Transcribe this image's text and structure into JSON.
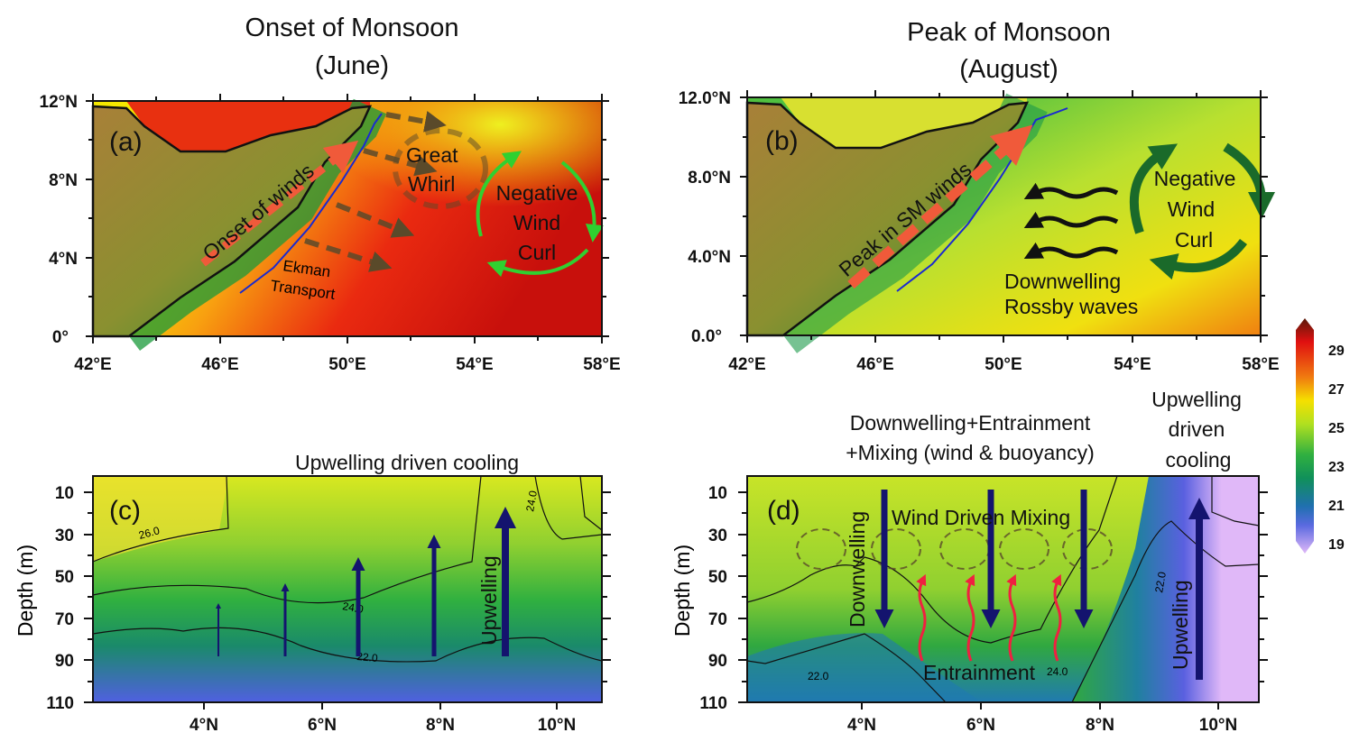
{
  "titles": {
    "left": {
      "line1": "Onset of Monsoon",
      "line2": "(June)"
    },
    "right": {
      "line1": "Peak of Monsoon",
      "line2": "(August)"
    }
  },
  "panel_a": {
    "label": "(a)",
    "x_ticks": [
      "42°E",
      "46°E",
      "50°E",
      "54°E",
      "58°E"
    ],
    "y_ticks": [
      "12°N",
      "8°N",
      "4°N",
      "0°"
    ],
    "annotations": {
      "winds": "Onset of winds",
      "great": "Great",
      "whirl": "Whirl",
      "negative": "Negative",
      "wind": "Wind",
      "curl": "Curl",
      "ekman": "Ekman",
      "transport": "Transport"
    }
  },
  "panel_b": {
    "label": "(b)",
    "x_ticks": [
      "42°E",
      "46°E",
      "50°E",
      "54°E",
      "58°E"
    ],
    "y_ticks": [
      "12.0°N",
      "8.0°N",
      "4.0°N",
      "0.0°"
    ],
    "annotations": {
      "winds": "Peak in SM winds",
      "negative": "Negative",
      "wind": "Wind",
      "curl": "Curl",
      "downwelling": "Downwelling",
      "rossby": "Rossby waves"
    }
  },
  "panel_c": {
    "label": "(c)",
    "title": "Upwelling driven cooling",
    "ylabel": "Depth (m)",
    "y_ticks": [
      "10",
      "30",
      "50",
      "70",
      "90",
      "110"
    ],
    "x_ticks": [
      "4°N",
      "6°N",
      "8°N",
      "10°N"
    ],
    "contours": [
      "26.0",
      "24.0",
      "22.0",
      "24.0"
    ],
    "annotations": {
      "upwelling": "Upwelling"
    }
  },
  "panel_d": {
    "label": "(d)",
    "title_line1": "Downwelling+Entrainment",
    "title_line2": "+Mixing (wind & buoyancy)",
    "side_title": [
      "Upwelling",
      "driven",
      "cooling"
    ],
    "ylabel": "Depth (m)",
    "y_ticks": [
      "10",
      "30",
      "50",
      "70",
      "90",
      "110"
    ],
    "x_ticks": [
      "4°N",
      "6°N",
      "8°N",
      "10°N"
    ],
    "contours": [
      "22.0",
      "22.0",
      "24.0"
    ],
    "annotations": {
      "downwelling": "Downwelling",
      "mixing": "Wind Driven Mixing",
      "entrainment": "Entrainment",
      "upwelling": "Upwelling"
    }
  },
  "colorbar": {
    "labels": [
      "29",
      "27",
      "25",
      "23",
      "21",
      "19"
    ],
    "colors": [
      "#5a1a0a",
      "#e01010",
      "#f07a10",
      "#f5e000",
      "#b0e020",
      "#30b040",
      "#10905a",
      "#2070b0",
      "#5a6ae0",
      "#e0b8f8"
    ]
  },
  "colors": {
    "land": "#b07a3a",
    "coast_green": "#1a9a3a",
    "wind_arrow": "#f05a3a",
    "ekman_arrow": "#5a4a2a",
    "curl_arrow_a": "#30d030",
    "curl_arrow_b": "#1a6a2a",
    "vertical_arrow": "#14146e",
    "entrainment_arrow": "#f02040",
    "streamline": "#1a2ad0"
  }
}
